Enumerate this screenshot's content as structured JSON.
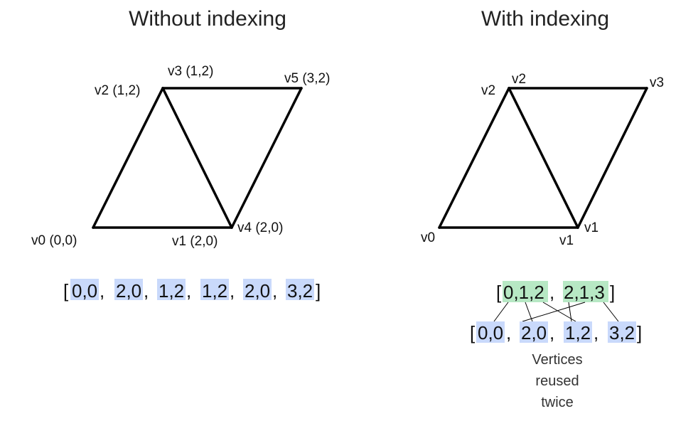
{
  "left": {
    "title": "Without indexing",
    "labels": {
      "v0": "v0 (0,0)",
      "v1": "v1 (2,0)",
      "v2": "v2 (1,2)",
      "v3": "v3 (1,2)",
      "v4": "v4 (2,0)",
      "v5": "v5 (3,2)"
    },
    "array": {
      "open": "[",
      "close": "]",
      "items": [
        "0,0",
        "2,0",
        "1,2",
        "1,2",
        "2,0",
        "3,2"
      ],
      "sep": ","
    }
  },
  "right": {
    "title": "With indexing",
    "labels": {
      "v0": "v0",
      "v1": "v1",
      "v1b": "v1",
      "v2": "v2",
      "v2b": "v2",
      "v3": "v3"
    },
    "index_array": {
      "open": "[",
      "close": "]",
      "items": [
        "0,1,2",
        "2,1,3"
      ],
      "sep": ","
    },
    "vertex_array": {
      "open": "[",
      "close": "]",
      "items": [
        "0,0",
        "2,0",
        "1,2",
        "3,2"
      ],
      "sep": ","
    },
    "note": [
      "Vertices",
      "reused",
      "twice"
    ]
  },
  "colors": {
    "vertex_highlight": "#c9d9fb",
    "index_highlight": "#b7e8c4"
  }
}
